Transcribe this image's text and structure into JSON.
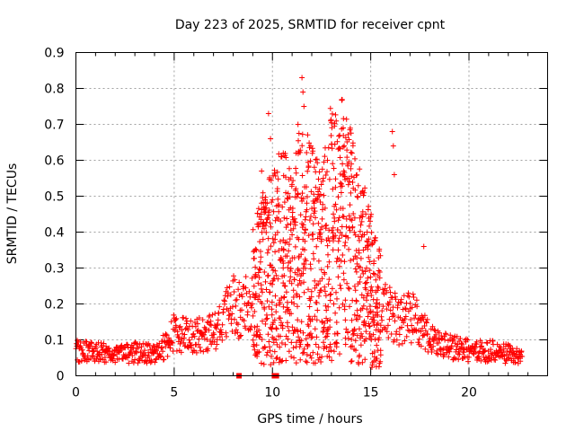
{
  "chart_data": {
    "type": "scatter",
    "title": "Day 223 of 2025, SRMTID for receiver cpnt",
    "xlabel": "GPS time / hours",
    "ylabel": "SRMTID / TECUs",
    "xlim": [
      0,
      24
    ],
    "ylim": [
      0,
      0.9
    ],
    "xticks": [
      "0",
      "5",
      "10",
      "15",
      "20"
    ],
    "yticks": [
      "0",
      "0.1",
      "0.2",
      "0.3",
      "0.4",
      "0.5",
      "0.6",
      "0.7",
      "0.8",
      "0.9"
    ],
    "grid": true,
    "marker": "plus",
    "color": "#ff0000",
    "envelope": [
      {
        "x": 0.0,
        "y": 0.07
      },
      {
        "x": 1.0,
        "y": 0.065
      },
      {
        "x": 2.0,
        "y": 0.06
      },
      {
        "x": 3.0,
        "y": 0.065
      },
      {
        "x": 4.0,
        "y": 0.06
      },
      {
        "x": 4.5,
        "y": 0.08
      },
      {
        "x": 5.0,
        "y": 0.12
      },
      {
        "x": 6.0,
        "y": 0.11
      },
      {
        "x": 7.0,
        "y": 0.12
      },
      {
        "x": 7.5,
        "y": 0.15
      },
      {
        "x": 8.0,
        "y": 0.2
      },
      {
        "x": 8.5,
        "y": 0.18
      },
      {
        "x": 9.0,
        "y": 0.22
      },
      {
        "x": 9.5,
        "y": 0.28
      },
      {
        "x": 10.0,
        "y": 0.3
      },
      {
        "x": 10.5,
        "y": 0.34
      },
      {
        "x": 11.0,
        "y": 0.3
      },
      {
        "x": 11.5,
        "y": 0.38
      },
      {
        "x": 12.0,
        "y": 0.34
      },
      {
        "x": 12.5,
        "y": 0.3
      },
      {
        "x": 13.0,
        "y": 0.4
      },
      {
        "x": 13.5,
        "y": 0.42
      },
      {
        "x": 14.0,
        "y": 0.36
      },
      {
        "x": 14.5,
        "y": 0.3
      },
      {
        "x": 15.0,
        "y": 0.24
      },
      {
        "x": 15.5,
        "y": 0.18
      },
      {
        "x": 16.0,
        "y": 0.17
      },
      {
        "x": 16.5,
        "y": 0.15
      },
      {
        "x": 17.0,
        "y": 0.17
      },
      {
        "x": 17.5,
        "y": 0.14
      },
      {
        "x": 18.0,
        "y": 0.1
      },
      {
        "x": 19.0,
        "y": 0.08
      },
      {
        "x": 20.0,
        "y": 0.07
      },
      {
        "x": 21.0,
        "y": 0.07
      },
      {
        "x": 22.0,
        "y": 0.06
      },
      {
        "x": 22.7,
        "y": 0.05
      }
    ],
    "notable_points": [
      {
        "x": 9.45,
        "y": 0.57
      },
      {
        "x": 9.8,
        "y": 0.73
      },
      {
        "x": 9.9,
        "y": 0.66
      },
      {
        "x": 10.55,
        "y": 0.62
      },
      {
        "x": 11.2,
        "y": 0.62
      },
      {
        "x": 11.3,
        "y": 0.7
      },
      {
        "x": 11.5,
        "y": 0.83
      },
      {
        "x": 11.55,
        "y": 0.79
      },
      {
        "x": 11.6,
        "y": 0.75
      },
      {
        "x": 11.95,
        "y": 0.64
      },
      {
        "x": 12.8,
        "y": 0.6
      },
      {
        "x": 13.6,
        "y": 0.69
      },
      {
        "x": 13.65,
        "y": 0.64
      },
      {
        "x": 14.05,
        "y": 0.62
      },
      {
        "x": 16.1,
        "y": 0.68
      },
      {
        "x": 16.15,
        "y": 0.64
      },
      {
        "x": 16.2,
        "y": 0.56
      },
      {
        "x": 17.7,
        "y": 0.36
      }
    ],
    "zero_points": [
      8.3,
      10.1,
      10.2
    ]
  }
}
